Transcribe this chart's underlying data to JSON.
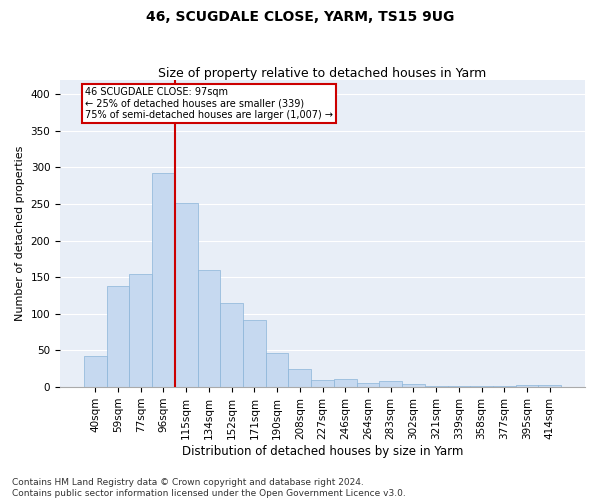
{
  "title": "46, SCUGDALE CLOSE, YARM, TS15 9UG",
  "subtitle": "Size of property relative to detached houses in Yarm",
  "xlabel": "Distribution of detached houses by size in Yarm",
  "ylabel": "Number of detached properties",
  "categories": [
    "40sqm",
    "59sqm",
    "77sqm",
    "96sqm",
    "115sqm",
    "134sqm",
    "152sqm",
    "171sqm",
    "190sqm",
    "208sqm",
    "227sqm",
    "246sqm",
    "264sqm",
    "283sqm",
    "302sqm",
    "321sqm",
    "339sqm",
    "358sqm",
    "377sqm",
    "395sqm",
    "414sqm"
  ],
  "values": [
    42,
    138,
    155,
    293,
    251,
    160,
    115,
    91,
    46,
    25,
    10,
    11,
    5,
    9,
    4,
    2,
    2,
    2,
    2,
    3,
    3
  ],
  "bar_color": "#c6d9f0",
  "bar_edge_color": "#8ab4d8",
  "vline_color": "#cc0000",
  "annotation_text": "46 SCUGDALE CLOSE: 97sqm\n← 25% of detached houses are smaller (339)\n75% of semi-detached houses are larger (1,007) →",
  "annotation_box_color": "white",
  "annotation_box_edge": "#cc0000",
  "ylim": [
    0,
    420
  ],
  "yticks": [
    0,
    50,
    100,
    150,
    200,
    250,
    300,
    350,
    400
  ],
  "background_color": "#e8eef7",
  "footer": "Contains HM Land Registry data © Crown copyright and database right 2024.\nContains public sector information licensed under the Open Government Licence v3.0.",
  "title_fontsize": 10,
  "subtitle_fontsize": 9,
  "xlabel_fontsize": 8.5,
  "ylabel_fontsize": 8,
  "tick_fontsize": 7.5,
  "footer_fontsize": 6.5
}
